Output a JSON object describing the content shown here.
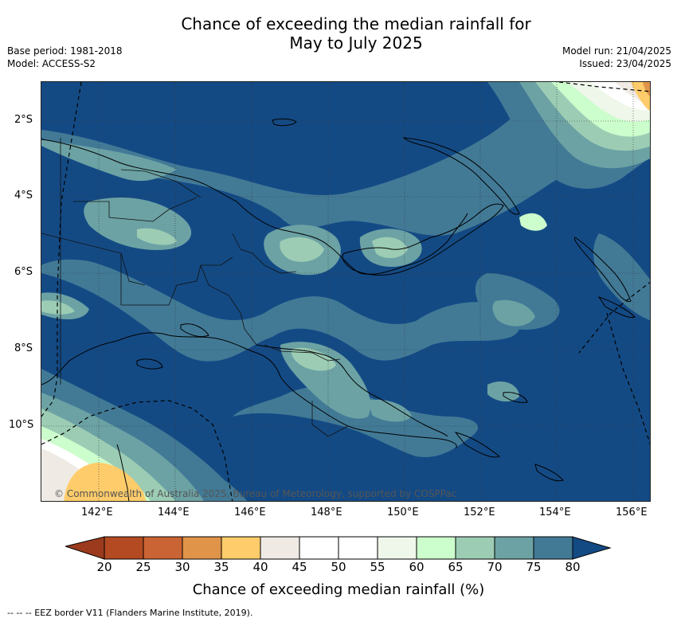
{
  "header": {
    "title_line1": "Chance of exceeding the median rainfall for",
    "title_line2": "May to July 2025",
    "base_period": "Base period: 1981-2018",
    "model": "Model: ACCESS-S2",
    "model_run": "Model run: 21/04/2025",
    "issued": "Issued: 23/04/2025"
  },
  "map": {
    "lat_labels": [
      "2°S",
      "4°S",
      "6°S",
      "8°S",
      "10°S"
    ],
    "lon_labels": [
      "142°E",
      "144°E",
      "146°E",
      "148°E",
      "150°E",
      "152°E",
      "154°E",
      "156°E"
    ],
    "copyright": "© Commonwealth of Australia 2025, Bureau of Meteorology, supported by COSPPac"
  },
  "colorbar": {
    "tick_labels": [
      "20",
      "25",
      "30",
      "35",
      "40",
      "45",
      "50",
      "55",
      "60",
      "65",
      "70",
      "75",
      "80"
    ],
    "colors": [
      "#b34a22",
      "#cb6434",
      "#e0944a",
      "#fecc6a",
      "#efebe4",
      "#ffffff",
      "#ffffff",
      "#eef7ea",
      "#ccfdcc",
      "#9ccdb4",
      "#6ca2a4",
      "#427a96"
    ],
    "under_color": "#9b3a1c",
    "over_color": "#144a84",
    "title": "Chance of exceeding median rainfall (%)"
  },
  "footnote": "--  --  -- EEZ border V11 (Flanders Marine Institute, 2019)."
}
